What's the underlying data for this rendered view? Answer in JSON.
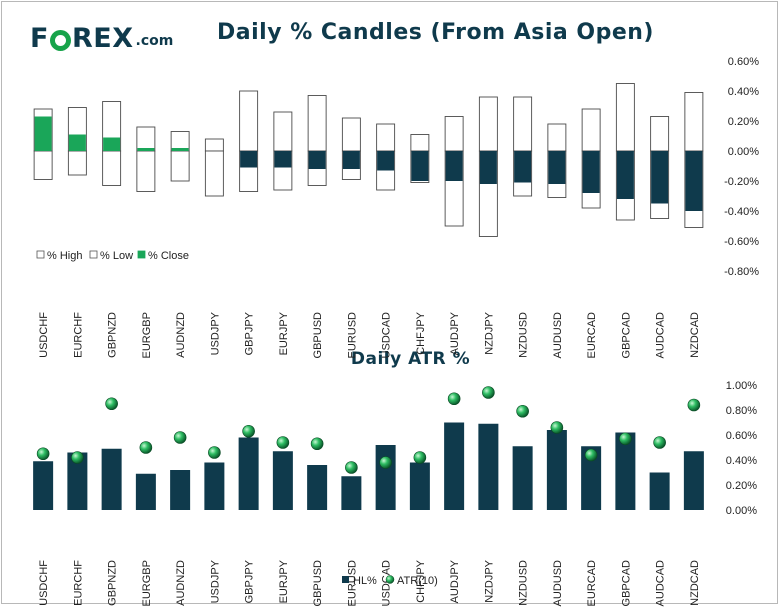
{
  "header": {
    "logo_main": "F",
    "logo_rest": "REX",
    "logo_suffix": ".com",
    "title": "Daily % Candles (From Asia Open)",
    "atr_title": "Daily ATR %"
  },
  "colors": {
    "dark": "#0f3a4c",
    "green": "#1aa659",
    "outline": "#4a4a4a"
  },
  "chart_data": [
    {
      "type": "bar",
      "title": "Daily % Candles (From Asia Open)",
      "categories": [
        "USDCHF",
        "EURCHF",
        "GBPNZD",
        "EURGBP",
        "AUDNZD",
        "USDJPY",
        "GBPJPY",
        "EURJPY",
        "GBPUSD",
        "EURUSD",
        "USDCAD",
        "CHFJPY",
        "AUDJPY",
        "NZDJPY",
        "NZDUSD",
        "AUDUSD",
        "EURCAD",
        "GBPCAD",
        "AUDCAD",
        "NZDCAD"
      ],
      "series": [
        {
          "name": "% High",
          "values": [
            0.28,
            0.29,
            0.33,
            0.16,
            0.13,
            0.08,
            0.4,
            0.26,
            0.37,
            0.22,
            0.18,
            0.11,
            0.23,
            0.36,
            0.36,
            0.18,
            0.28,
            0.45,
            0.23,
            0.39
          ]
        },
        {
          "name": "% Low",
          "values": [
            -0.19,
            -0.16,
            -0.23,
            -0.27,
            -0.2,
            -0.3,
            -0.27,
            -0.26,
            -0.23,
            -0.19,
            -0.26,
            -0.21,
            -0.5,
            -0.57,
            -0.3,
            -0.31,
            -0.38,
            -0.46,
            -0.45,
            -0.51
          ]
        },
        {
          "name": "% Close",
          "values": [
            0.23,
            0.11,
            0.09,
            0.02,
            0.02,
            0.0,
            -0.11,
            -0.11,
            -0.12,
            -0.12,
            -0.13,
            -0.2,
            -0.2,
            -0.22,
            -0.21,
            -0.22,
            -0.28,
            -0.32,
            -0.35,
            -0.4
          ]
        }
      ],
      "yticks": [
        "0.60%",
        "0.40%",
        "0.20%",
        "0.00%",
        "-0.20%",
        "-0.40%",
        "-0.60%",
        "-0.80%"
      ],
      "ylim": [
        -0.8,
        0.6
      ],
      "legend": [
        "% High",
        "% Low",
        "% Close"
      ]
    },
    {
      "type": "bar",
      "title": "Daily ATR %",
      "categories": [
        "USDCHF",
        "EURCHF",
        "GBPNZD",
        "EURGBP",
        "AUDNZD",
        "USDJPY",
        "GBPJPY",
        "EURJPY",
        "GBPUSD",
        "EURUSD",
        "USDCAD",
        "CHFJPY",
        "AUDJPY",
        "NZDJPY",
        "NZDUSD",
        "AUDUSD",
        "EURCAD",
        "GBPCAD",
        "AUDCAD",
        "NZDCAD"
      ],
      "series": [
        {
          "name": "HL%",
          "values": [
            0.39,
            0.46,
            0.49,
            0.29,
            0.32,
            0.38,
            0.58,
            0.47,
            0.36,
            0.27,
            0.52,
            0.38,
            0.7,
            0.69,
            0.51,
            0.64,
            0.51,
            0.62,
            0.3,
            0.47
          ]
        },
        {
          "name": "ATR(10)",
          "values": [
            0.45,
            0.42,
            0.85,
            0.5,
            0.58,
            0.46,
            0.63,
            0.54,
            0.53,
            0.34,
            0.38,
            0.42,
            0.89,
            0.94,
            0.79,
            0.66,
            0.44,
            0.57,
            0.54,
            0.84
          ]
        }
      ],
      "yticks": [
        "1.00%",
        "0.80%",
        "0.60%",
        "0.40%",
        "0.20%",
        "0.00%"
      ],
      "ylim": [
        0,
        1.0
      ],
      "legend": [
        "HL%",
        "ATR(10)"
      ]
    }
  ]
}
